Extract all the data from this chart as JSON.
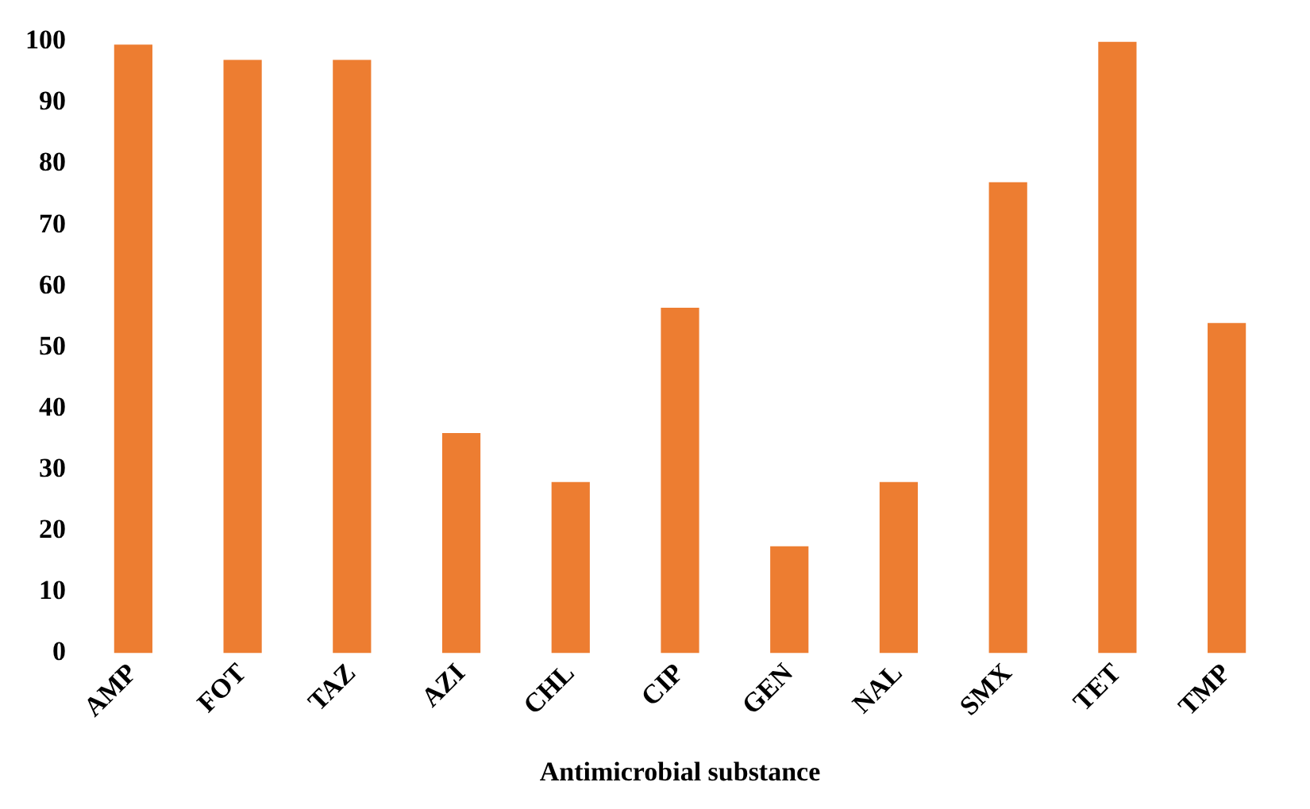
{
  "chart_data": {
    "type": "bar",
    "xlabel": "Antimicrobial substance",
    "categories": [
      "AMP",
      "FOT",
      "TAZ",
      "AZI",
      "CHL",
      "CIP",
      "GEN",
      "NAL",
      "SMX",
      "TET",
      "TMP"
    ],
    "values": [
      99.5,
      97,
      97,
      36,
      28,
      56.5,
      17.5,
      28,
      77,
      100,
      54
    ],
    "color": "#ed7d31",
    "ylim": [
      0,
      100
    ],
    "yticks": [
      0,
      10,
      20,
      30,
      40,
      50,
      60,
      70,
      80,
      90,
      100
    ],
    "grid": false,
    "legend": false
  }
}
